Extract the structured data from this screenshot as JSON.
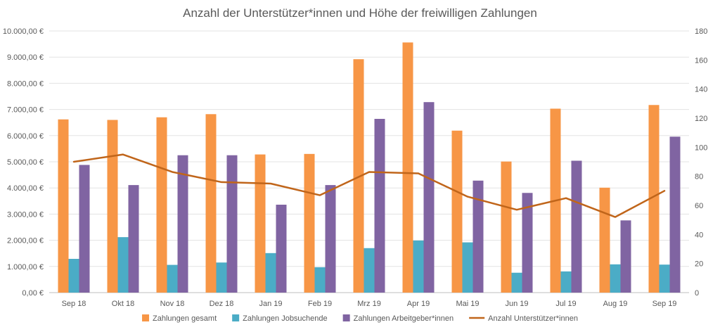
{
  "chart_data": {
    "type": "bar",
    "title": "Anzahl der Unterstützer*innen und Höhe der freiwilligen Zahlungen",
    "categories": [
      "Sep 18",
      "Okt 18",
      "Nov 18",
      "Dez 18",
      "Jan 19",
      "Feb 19",
      "Mrz 19",
      "Apr 19",
      "Mai 19",
      "Jun 19",
      "Jul 19",
      "Aug 19",
      "Sep 19"
    ],
    "y_left": {
      "min": 0,
      "max": 10000,
      "step": 1000,
      "tick_labels": [
        "0,00 €",
        "1.000,00 €",
        "2.000,00 €",
        "3.000,00 €",
        "4.000,00 €",
        "5.000,00 €",
        "6.000,00 €",
        "7.000,00 €",
        "8.000,00 €",
        "9.000,00 €",
        "10.000,00 €"
      ]
    },
    "y_right": {
      "min": 0,
      "max": 180,
      "step": 20,
      "tick_labels": [
        "0",
        "20",
        "40",
        "60",
        "80",
        "100",
        "120",
        "140",
        "160",
        "180"
      ]
    },
    "grid": true,
    "legend_position": "bottom",
    "series": [
      {
        "name": "Zahlungen gesamt",
        "type": "bar",
        "axis": "left",
        "color": "#F79646",
        "values": [
          6620,
          6600,
          6700,
          6820,
          5280,
          5300,
          8920,
          9560,
          6190,
          5010,
          7030,
          4010,
          7170
        ]
      },
      {
        "name": "Zahlungen Jobsuchende",
        "type": "bar",
        "axis": "left",
        "color": "#4BACC6",
        "values": [
          1290,
          2120,
          1060,
          1150,
          1510,
          970,
          1700,
          1990,
          1920,
          760,
          810,
          1080,
          1070
        ]
      },
      {
        "name": "Zahlungen Arbeitgeber*innen",
        "type": "bar",
        "axis": "left",
        "color": "#8064A2",
        "values": [
          4880,
          4110,
          5250,
          5250,
          3360,
          4110,
          6640,
          7280,
          4280,
          3810,
          5040,
          2760,
          5960
        ]
      },
      {
        "name": "Anzahl Unterstützer*innen",
        "type": "line",
        "axis": "right",
        "color": "#C0651A",
        "values": [
          90,
          95,
          83,
          76,
          75,
          67,
          83,
          82,
          66,
          57,
          65,
          52,
          70
        ]
      }
    ]
  }
}
